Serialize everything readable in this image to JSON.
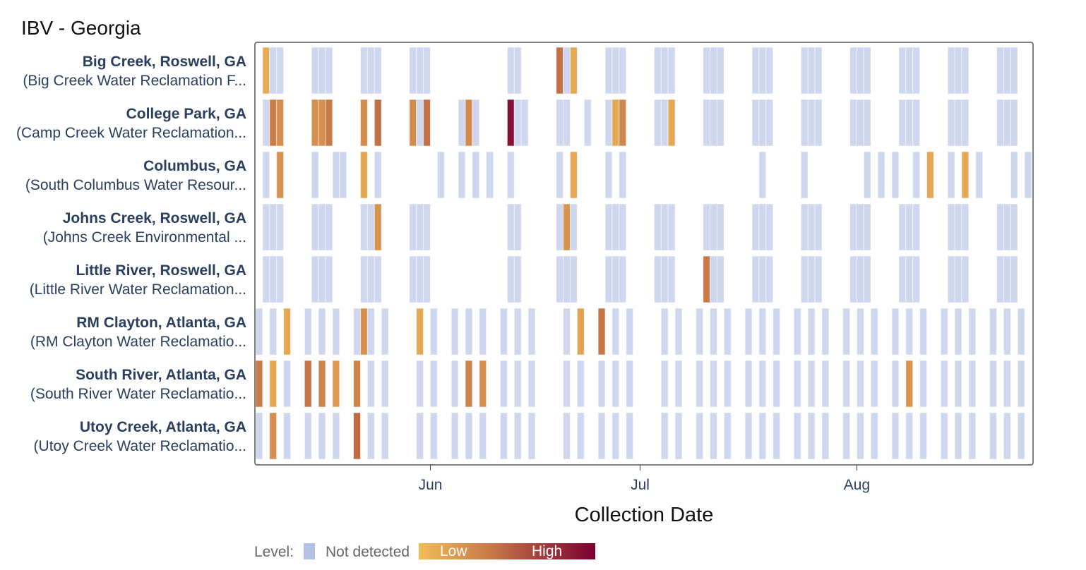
{
  "chart_data": {
    "type": "heatmap",
    "title": "IBV - Georgia",
    "xlabel": "Collection Date",
    "ylabel": "",
    "xlim": [
      "05-07",
      "08-26"
    ],
    "x_ticks": [
      {
        "date": "06-01",
        "label": "Jun"
      },
      {
        "date": "07-01",
        "label": "Jul"
      },
      {
        "date": "08-01",
        "label": "Aug"
      }
    ],
    "grid": false,
    "legend": {
      "placement": "bottom",
      "title": "Level:",
      "not_detected_label": "Not detected",
      "low_label": "Low",
      "high_label": "High"
    },
    "colors": {
      "not_detected": "#ced7ee",
      "not_detected_legend": "#b3c1e6",
      "scale": [
        "#f2bc5a",
        "#c87a48",
        "#7b0030"
      ]
    },
    "level_note_scale": "detected levels are 0 (Low) to 1 (High)",
    "rows": [
      {
        "name": "Big Creek, Roswell, GA",
        "facility": "(Big Creek Water Reclamation F...",
        "sampled": [
          "05-08",
          "05-09",
          "05-10",
          "05-15",
          "05-16",
          "05-17",
          "05-22",
          "05-23",
          "05-24",
          "05-29",
          "05-30",
          "05-31",
          "06-12",
          "06-13",
          "06-19",
          "06-20",
          "06-21",
          "06-26",
          "06-27",
          "06-28",
          "07-03",
          "07-04",
          "07-05",
          "07-10",
          "07-11",
          "07-12",
          "07-17",
          "07-18",
          "07-19",
          "07-24",
          "07-25",
          "07-26",
          "07-31",
          "08-01",
          "08-02",
          "08-07",
          "08-08",
          "08-09",
          "08-14",
          "08-15",
          "08-16",
          "08-21",
          "08-22",
          "08-23"
        ],
        "detected": {
          "05-08": 0.1,
          "06-19": 0.45,
          "06-21": 0.12
        }
      },
      {
        "name": "College Park, GA",
        "facility": "(Camp Creek Water Reclamation...",
        "sampled": [
          "05-08",
          "05-09",
          "05-10",
          "05-15",
          "05-16",
          "05-17",
          "05-22",
          "05-24",
          "05-29",
          "05-30",
          "05-31",
          "06-05",
          "06-06",
          "06-07",
          "06-12",
          "06-13",
          "06-14",
          "06-19",
          "06-20",
          "06-23",
          "06-26",
          "06-27",
          "06-28",
          "07-03",
          "07-04",
          "07-05",
          "07-10",
          "07-11",
          "07-12",
          "07-17",
          "07-18",
          "07-19",
          "07-24",
          "07-25",
          "07-26",
          "07-31",
          "08-01",
          "08-02",
          "08-07",
          "08-08",
          "08-09",
          "08-14",
          "08-15",
          "08-16",
          "08-21",
          "08-22",
          "08-23"
        ],
        "detected": {
          "05-09": 0.38,
          "05-10": 0.28,
          "05-15": 0.27,
          "05-16": 0.27,
          "05-17": 0.4,
          "05-22": 0.3,
          "05-24": 0.45,
          "05-29": 0.3,
          "05-31": 0.45,
          "06-06": 0.3,
          "06-12": 0.92,
          "06-27": 0.12,
          "06-28": 0.32,
          "07-05": 0.12
        }
      },
      {
        "name": "Columbus, GA",
        "facility": "(South Columbus Water Resour...",
        "sampled": [
          "05-08",
          "05-10",
          "05-15",
          "05-18",
          "05-19",
          "05-22",
          "05-24",
          "06-02",
          "06-05",
          "06-07",
          "06-09",
          "06-12",
          "06-19",
          "06-21",
          "06-26",
          "06-28",
          "07-18",
          "07-24",
          "08-02",
          "08-04",
          "08-06",
          "08-09",
          "08-11",
          "08-14",
          "08-16",
          "08-18",
          "08-23",
          "08-25"
        ],
        "detected": {
          "05-10": 0.25,
          "05-22": 0.12,
          "06-21": 0.12,
          "08-11": 0.12,
          "08-16": 0.12
        }
      },
      {
        "name": "Johns Creek, Roswell, GA",
        "facility": "(Johns Creek Environmental ...",
        "sampled": [
          "05-08",
          "05-09",
          "05-10",
          "05-15",
          "05-16",
          "05-17",
          "05-22",
          "05-23",
          "05-24",
          "05-29",
          "05-30",
          "05-31",
          "06-12",
          "06-13",
          "06-19",
          "06-20",
          "06-21",
          "06-26",
          "06-27",
          "06-28",
          "07-03",
          "07-04",
          "07-05",
          "07-10",
          "07-11",
          "07-12",
          "07-17",
          "07-18",
          "07-19",
          "07-24",
          "07-25",
          "07-26",
          "07-31",
          "08-01",
          "08-02",
          "08-07",
          "08-08",
          "08-09",
          "08-14",
          "08-15",
          "08-16",
          "08-21",
          "08-22",
          "08-23"
        ],
        "detected": {
          "05-24": 0.25,
          "06-20": 0.25
        }
      },
      {
        "name": "Little River, Roswell, GA",
        "facility": "(Little River Water Reclamation...",
        "sampled": [
          "05-08",
          "05-09",
          "05-10",
          "05-15",
          "05-16",
          "05-17",
          "05-22",
          "05-23",
          "05-24",
          "05-29",
          "05-30",
          "05-31",
          "06-12",
          "06-13",
          "06-19",
          "06-20",
          "06-21",
          "06-26",
          "06-27",
          "06-28",
          "07-03",
          "07-04",
          "07-05",
          "07-10",
          "07-11",
          "07-12",
          "07-17",
          "07-18",
          "07-19",
          "07-24",
          "07-25",
          "07-26",
          "07-31",
          "08-01",
          "08-02",
          "08-07",
          "08-08",
          "08-09",
          "08-14",
          "08-15",
          "08-16",
          "08-21",
          "08-22",
          "08-23"
        ],
        "detected": {
          "07-10": 0.4
        }
      },
      {
        "name": "RM Clayton, Atlanta, GA",
        "facility": "(RM Clayton Water Reclamatio...",
        "sampled": [
          "05-07",
          "05-09",
          "05-11",
          "05-14",
          "05-16",
          "05-18",
          "05-21",
          "05-22",
          "05-23",
          "05-25",
          "05-30",
          "06-01",
          "06-04",
          "06-06",
          "06-08",
          "06-11",
          "06-13",
          "06-15",
          "06-20",
          "06-22",
          "06-25",
          "06-27",
          "06-29",
          "07-04",
          "07-06",
          "07-09",
          "07-11",
          "07-13",
          "07-16",
          "07-18",
          "07-20",
          "07-23",
          "07-25",
          "07-27",
          "07-30",
          "08-01",
          "08-03",
          "08-06",
          "08-08",
          "08-10",
          "08-13",
          "08-15",
          "08-17",
          "08-20",
          "08-22",
          "08-24"
        ],
        "detected": {
          "05-11": 0.12,
          "05-22": 0.27,
          "05-30": 0.12,
          "06-22": 0.15,
          "06-25": 0.42
        }
      },
      {
        "name": "South River, Atlanta, GA",
        "facility": "(South River Water Reclamatio...",
        "sampled": [
          "05-07",
          "05-09",
          "05-11",
          "05-14",
          "05-16",
          "05-18",
          "05-21",
          "05-23",
          "05-25",
          "05-30",
          "06-01",
          "06-04",
          "06-06",
          "06-08",
          "06-11",
          "06-13",
          "06-15",
          "06-20",
          "06-22",
          "06-25",
          "06-27",
          "06-29",
          "07-04",
          "07-06",
          "07-09",
          "07-11",
          "07-13",
          "07-16",
          "07-18",
          "07-20",
          "07-23",
          "07-25",
          "07-27",
          "07-30",
          "08-01",
          "08-03",
          "08-06",
          "08-08",
          "08-10",
          "08-13",
          "08-15",
          "08-17",
          "08-20",
          "08-22",
          "08-24"
        ],
        "detected": {
          "05-07": 0.4,
          "05-09": 0.12,
          "05-14": 0.42,
          "05-16": 0.35,
          "05-18": 0.2,
          "05-21": 0.35,
          "06-06": 0.35,
          "06-08": 0.28,
          "08-08": 0.25
        }
      },
      {
        "name": "Utoy Creek, Atlanta, GA",
        "facility": "(Utoy Creek Water Reclamatio...",
        "sampled": [
          "05-07",
          "05-09",
          "05-11",
          "05-14",
          "05-16",
          "05-18",
          "05-21",
          "05-23",
          "05-25",
          "05-30",
          "06-01",
          "06-04",
          "06-06",
          "06-08",
          "06-11",
          "06-13",
          "06-15",
          "06-20",
          "06-22",
          "06-25",
          "06-27",
          "06-29",
          "07-04",
          "07-06",
          "07-09",
          "07-11",
          "07-13",
          "07-16",
          "07-18",
          "07-20",
          "07-23",
          "07-25",
          "07-27",
          "07-30",
          "08-01",
          "08-03",
          "08-06",
          "08-08",
          "08-10",
          "08-13",
          "08-15",
          "08-17",
          "08-20",
          "08-22",
          "08-24"
        ],
        "detected": {
          "05-09": 0.28,
          "05-21": 0.48
        }
      }
    ]
  }
}
